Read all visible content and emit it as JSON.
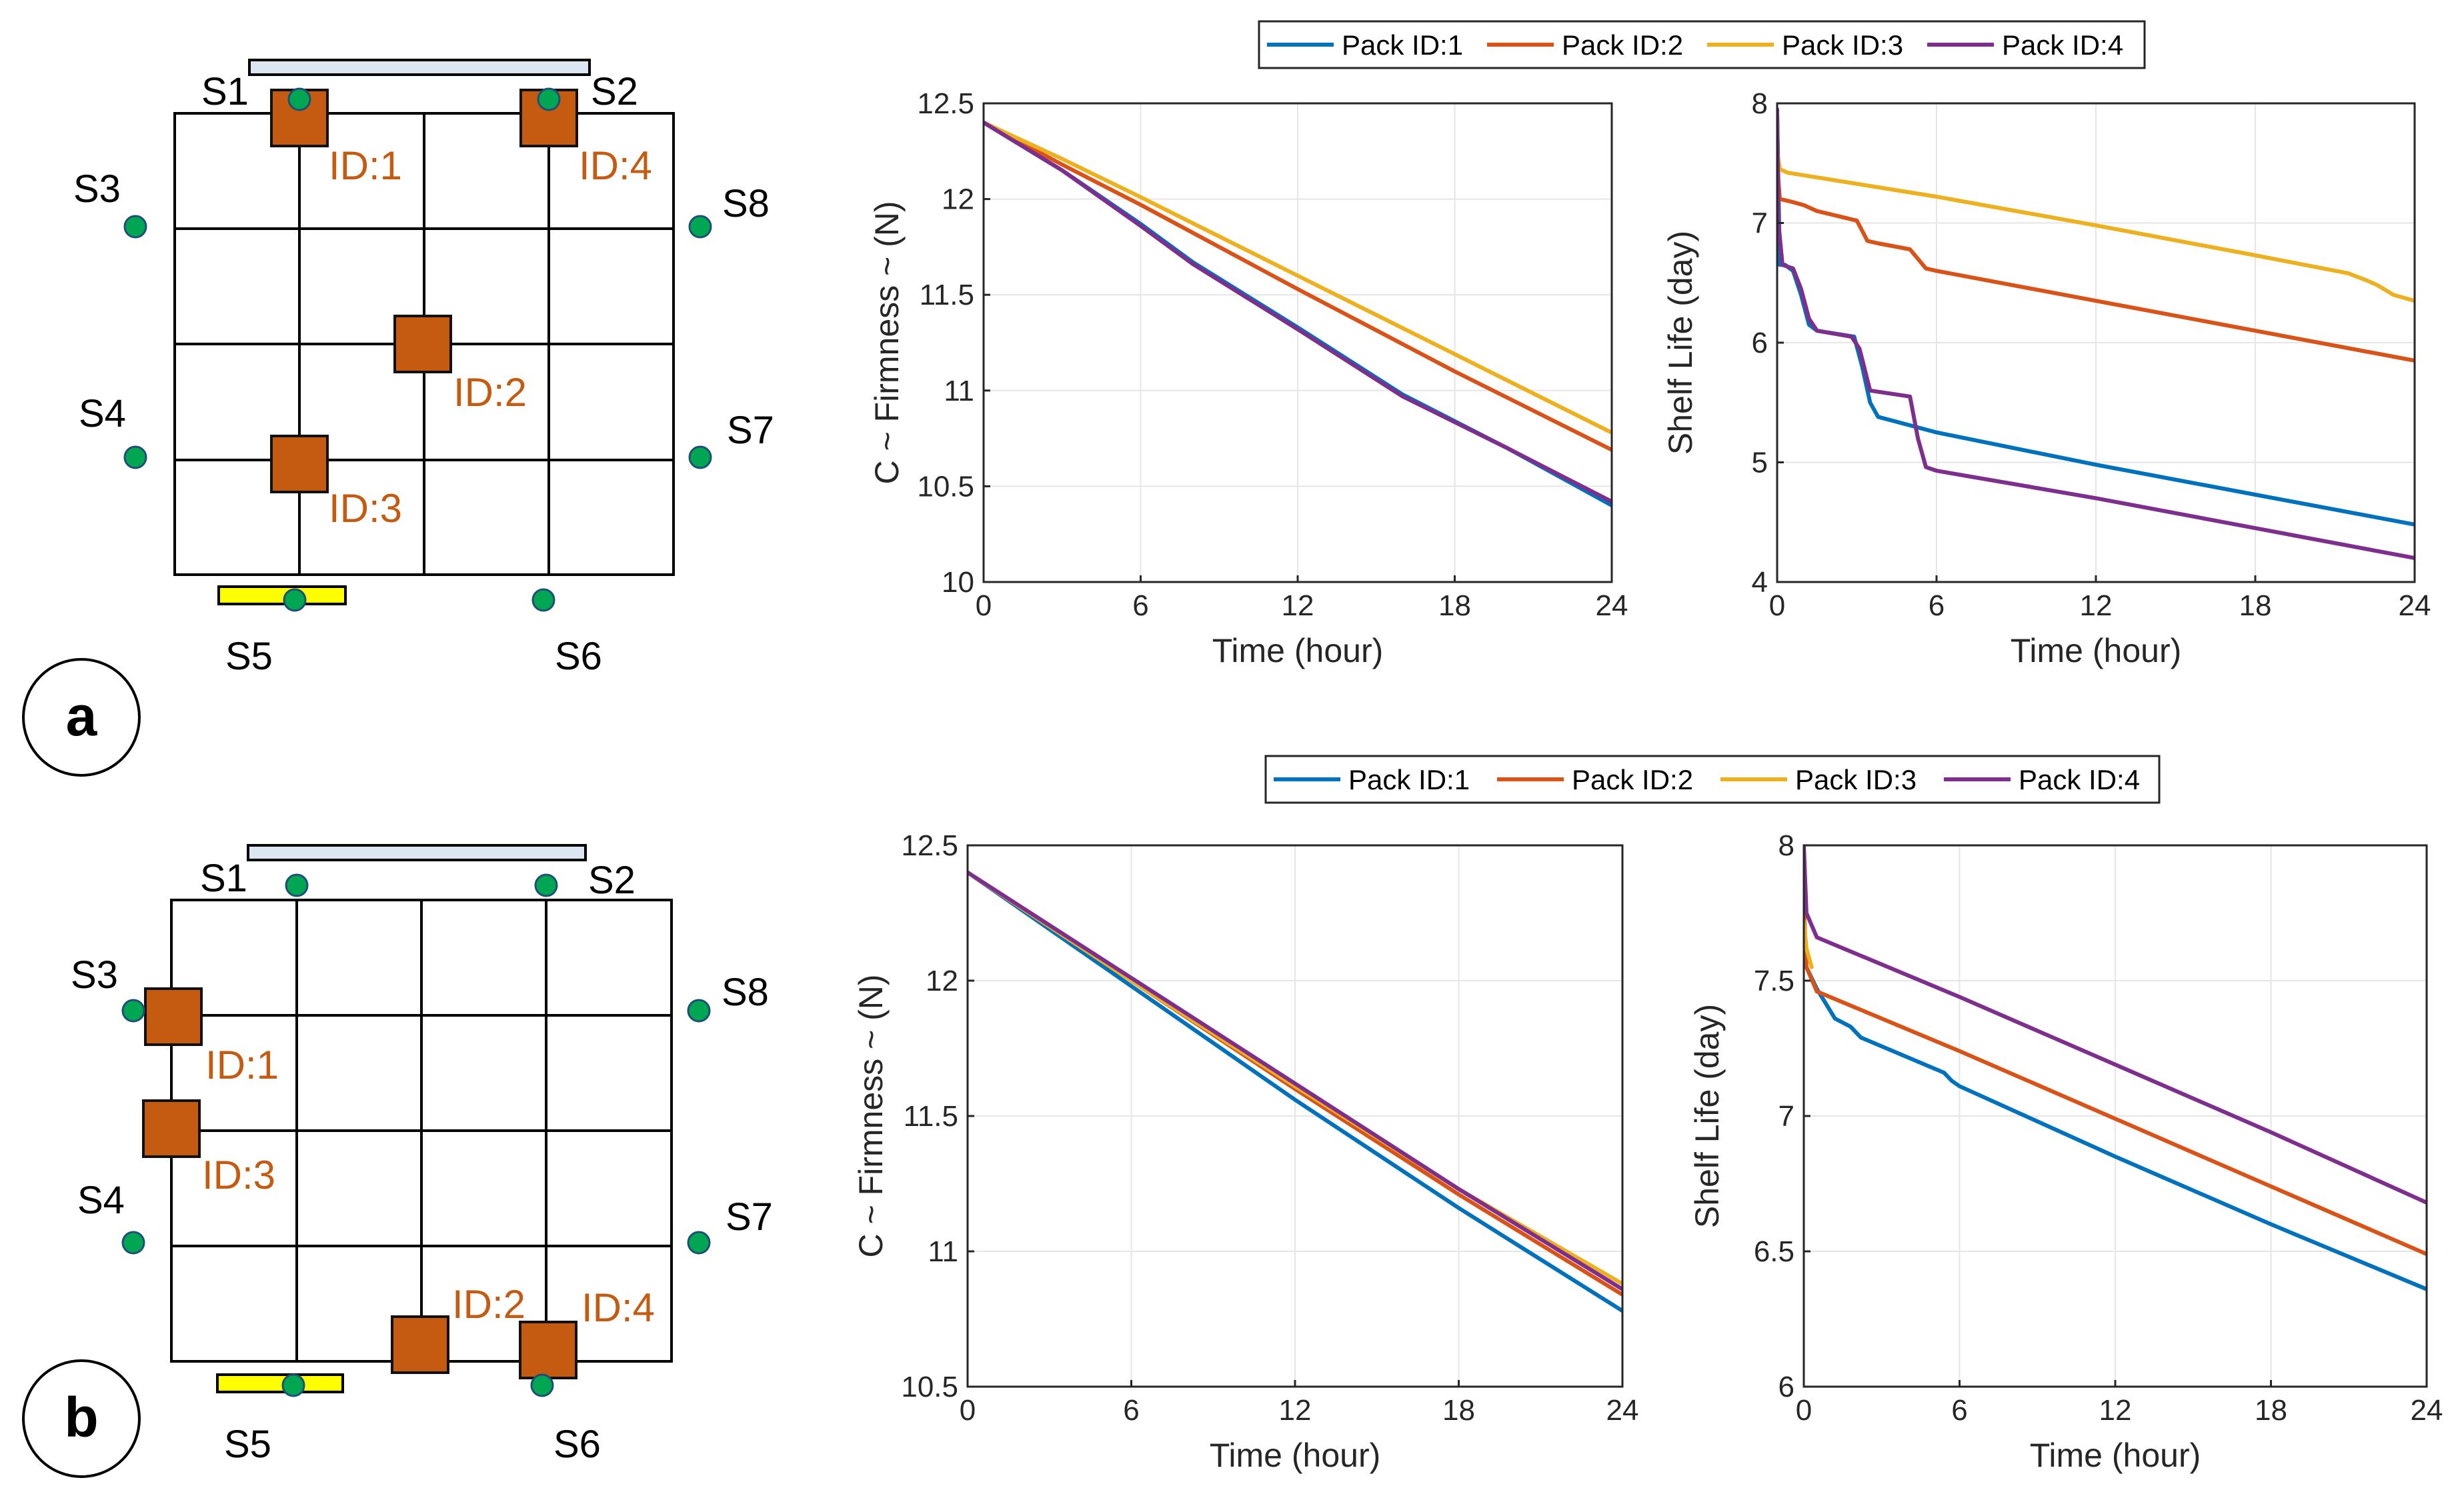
{
  "panels": [
    {
      "id": "a",
      "badge": "a",
      "layout": {
        "sensors": [
          {
            "label": "S1"
          },
          {
            "label": "S2"
          },
          {
            "label": "S3"
          },
          {
            "label": "S4"
          },
          {
            "label": "S5"
          },
          {
            "label": "S6"
          },
          {
            "label": "S7"
          },
          {
            "label": "S8"
          }
        ],
        "packs": [
          {
            "label": "ID:1"
          },
          {
            "label": "ID:2"
          },
          {
            "label": "ID:3"
          },
          {
            "label": "ID:4"
          }
        ]
      }
    },
    {
      "id": "b",
      "badge": "b",
      "layout": {
        "sensors": [
          {
            "label": "S1"
          },
          {
            "label": "S2"
          },
          {
            "label": "S3"
          },
          {
            "label": "S4"
          },
          {
            "label": "S5"
          },
          {
            "label": "S6"
          },
          {
            "label": "S7"
          },
          {
            "label": "S8"
          }
        ],
        "packs": [
          {
            "label": "ID:1"
          },
          {
            "label": "ID:2"
          },
          {
            "label": "ID:3"
          },
          {
            "label": "ID:4"
          }
        ]
      }
    }
  ],
  "colors": {
    "pack1": "#0072bd",
    "pack2": "#d95319",
    "pack3": "#edb120",
    "pack4": "#7e2f8e"
  },
  "chart_data": [
    {
      "type": "line",
      "panel": "a",
      "title": "",
      "xlabel": "Time (hour)",
      "ylabel": "C ~ Firmness ~ (N)",
      "xlim": [
        0,
        24
      ],
      "ylim": [
        10,
        12.5
      ],
      "xticks": [
        0,
        6,
        12,
        18,
        24
      ],
      "yticks": [
        10,
        10.5,
        11,
        11.5,
        12,
        12.5
      ],
      "ytick_labels": [
        "10",
        "10.5",
        "11",
        "11.5",
        "12",
        "12.5"
      ],
      "grid": true,
      "legend": "top-center",
      "series": [
        {
          "name": "Pack ID:1",
          "x": [
            0,
            3,
            6,
            8,
            12,
            16,
            20,
            24
          ],
          "y": [
            12.4,
            12.15,
            11.87,
            11.67,
            11.33,
            10.98,
            10.7,
            10.4
          ]
        },
        {
          "name": "Pack ID:2",
          "x": [
            0,
            3,
            6,
            12,
            18,
            24
          ],
          "y": [
            12.4,
            12.18,
            11.97,
            11.53,
            11.1,
            10.69
          ]
        },
        {
          "name": "Pack ID:3",
          "x": [
            0,
            3,
            6,
            12,
            18,
            24
          ],
          "y": [
            12.4,
            12.21,
            12.01,
            11.6,
            11.19,
            10.78
          ]
        },
        {
          "name": "Pack ID:4",
          "x": [
            0,
            3,
            6,
            8,
            12,
            16,
            20,
            24
          ],
          "y": [
            12.4,
            12.15,
            11.86,
            11.66,
            11.32,
            10.97,
            10.7,
            10.42
          ]
        }
      ]
    },
    {
      "type": "line",
      "panel": "a",
      "title": "",
      "xlabel": "Time (hour)",
      "ylabel": "Shelf Life (day)",
      "xlim": [
        0,
        24
      ],
      "ylim": [
        4,
        8
      ],
      "xticks": [
        0,
        6,
        12,
        18,
        24
      ],
      "yticks": [
        4,
        5,
        6,
        7,
        8
      ],
      "ytick_labels": [
        "4",
        "5",
        "6",
        "7",
        "8"
      ],
      "grid": true,
      "legend": "top-center",
      "series": [
        {
          "name": "Pack ID:1",
          "x": [
            0,
            0.1,
            0.3,
            0.6,
            0.9,
            1.2,
            1.5,
            2.9,
            3.2,
            3.5,
            3.8,
            6,
            12,
            18,
            24
          ],
          "y": [
            7.9,
            6.65,
            6.65,
            6.6,
            6.4,
            6.15,
            6.1,
            6.05,
            5.8,
            5.5,
            5.38,
            5.25,
            4.98,
            4.73,
            4.48
          ]
        },
        {
          "name": "Pack ID:2",
          "x": [
            0,
            0.1,
            0.5,
            1,
            1.5,
            3,
            3.4,
            3.8,
            5,
            5.6,
            6,
            12,
            18,
            24
          ],
          "y": [
            7.5,
            7.2,
            7.18,
            7.15,
            7.1,
            7.02,
            6.85,
            6.83,
            6.78,
            6.62,
            6.6,
            6.35,
            6.1,
            5.85
          ]
        },
        {
          "name": "Pack ID:3",
          "x": [
            0,
            0.1,
            0.4,
            6,
            12,
            18,
            21.5,
            22.2,
            22.6,
            23.2,
            24
          ],
          "y": [
            7.6,
            7.45,
            7.42,
            7.22,
            6.98,
            6.73,
            6.58,
            6.52,
            6.48,
            6.4,
            6.35
          ]
        },
        {
          "name": "Pack ID:4",
          "x": [
            0,
            0.05,
            0.2,
            0.6,
            0.9,
            1.2,
            1.5,
            2.8,
            3.1,
            3.5,
            5,
            5.3,
            5.6,
            6,
            12,
            18,
            24
          ],
          "y": [
            7.95,
            7.0,
            6.65,
            6.62,
            6.45,
            6.2,
            6.1,
            6.05,
            5.95,
            5.6,
            5.55,
            5.2,
            4.96,
            4.93,
            4.7,
            4.45,
            4.2
          ]
        }
      ]
    },
    {
      "type": "line",
      "panel": "b",
      "title": "",
      "xlabel": "Time (hour)",
      "ylabel": "C ~ Firmness ~ (N)",
      "xlim": [
        0,
        24
      ],
      "ylim": [
        10.5,
        12.5
      ],
      "xticks": [
        0,
        6,
        12,
        18,
        24
      ],
      "yticks": [
        10.5,
        11,
        11.5,
        12,
        12.5
      ],
      "ytick_labels": [
        "10.5",
        "11",
        "11.5",
        "12",
        "12.5"
      ],
      "grid": true,
      "legend": "top-center",
      "series": [
        {
          "name": "Pack ID:1",
          "x": [
            0,
            6,
            12,
            18,
            24
          ],
          "y": [
            12.4,
            11.98,
            11.56,
            11.16,
            10.78
          ]
        },
        {
          "name": "Pack ID:2",
          "x": [
            0,
            6,
            12,
            18,
            24
          ],
          "y": [
            12.4,
            12.0,
            11.6,
            11.21,
            10.84
          ]
        },
        {
          "name": "Pack ID:3",
          "x": [
            0,
            6,
            12,
            18,
            24
          ],
          "y": [
            12.4,
            12.0,
            11.61,
            11.23,
            10.88
          ]
        },
        {
          "name": "Pack ID:4",
          "x": [
            0,
            6,
            12,
            18,
            24
          ],
          "y": [
            12.4,
            12.01,
            11.62,
            11.23,
            10.86
          ]
        }
      ]
    },
    {
      "type": "line",
      "panel": "b",
      "title": "",
      "xlabel": "Time (hour)",
      "ylabel": "Shelf Life (day)",
      "xlim": [
        0,
        24
      ],
      "ylim": [
        6,
        8
      ],
      "xticks": [
        0,
        6,
        12,
        18,
        24
      ],
      "yticks": [
        6,
        6.5,
        7,
        7.5,
        8
      ],
      "ytick_labels": [
        "6",
        "6.5",
        "7",
        "7.5",
        "8"
      ],
      "grid": true,
      "legend": "top-center",
      "series": [
        {
          "name": "Pack ID:1",
          "x": [
            0,
            0.1,
            0.5,
            1.2,
            1.8,
            2.2,
            5.4,
            5.7,
            6,
            12,
            18,
            24
          ],
          "y": [
            7.72,
            7.55,
            7.47,
            7.36,
            7.33,
            7.29,
            7.16,
            7.13,
            7.11,
            6.85,
            6.6,
            6.36
          ]
        },
        {
          "name": "Pack ID:2",
          "x": [
            0,
            0.1,
            0.5,
            6,
            12,
            18,
            24
          ],
          "y": [
            7.78,
            7.55,
            7.46,
            7.24,
            6.99,
            6.74,
            6.49
          ]
        },
        {
          "name": "Pack ID:3",
          "x": [
            0,
            0.1,
            0.3
          ],
          "y": [
            7.72,
            7.62,
            7.55
          ]
        },
        {
          "name": "Pack ID:4",
          "x": [
            0,
            0.1,
            0.5,
            6,
            12,
            18,
            24
          ],
          "y": [
            8.0,
            7.75,
            7.66,
            7.44,
            7.19,
            6.94,
            6.68
          ]
        }
      ]
    }
  ]
}
